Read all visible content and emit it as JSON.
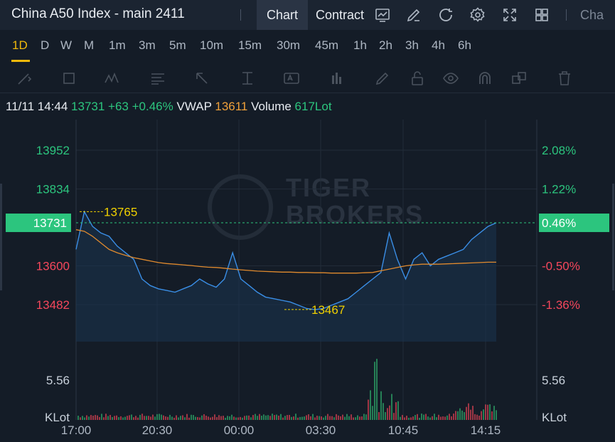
{
  "header": {
    "title": "China A50 Index - main 2411",
    "tab_chart": "Chart",
    "tab_contract": "Contract",
    "truncated": "Cha"
  },
  "intervals": [
    "1D",
    "D",
    "W",
    "M",
    "1m",
    "3m",
    "5m",
    "10m",
    "15m",
    "30m",
    "45m",
    "1h",
    "2h",
    "3h",
    "4h",
    "6h"
  ],
  "active_interval": "1D",
  "quote": {
    "datetime": "11/11 14:44",
    "price": "13731",
    "change": "+63",
    "change_pct": "+0.46%",
    "vwap_label": "VWAP",
    "vwap_value": "13611",
    "volume_label": "Volume",
    "volume_value": "617Lot"
  },
  "watermark": {
    "line1": "TIGER",
    "line2": "BROKERS"
  },
  "colors": {
    "up": "#2cc57e",
    "down": "#f5475c",
    "line": "#3a8ee6",
    "vwap": "#e08a2e",
    "mark": "#f0d000"
  },
  "chart_data": {
    "type": "line",
    "price_levels": [
      {
        "price": 13952,
        "label": "13952",
        "pct": "2.08%",
        "side": "up"
      },
      {
        "price": 13834,
        "label": "13834",
        "pct": "1.22%",
        "side": "up"
      },
      {
        "price": 13731,
        "label": "13731",
        "pct": "0.46%",
        "side": "current"
      },
      {
        "price": 13600,
        "label": "13600",
        "pct": "-0.50%",
        "side": "down"
      },
      {
        "price": 13482,
        "label": "13482",
        "pct": "-1.36%",
        "side": "down"
      }
    ],
    "high_mark": "13765",
    "low_mark": "13467",
    "volume_tick": "5.56",
    "volume_unit": "KLot",
    "x_ticks": [
      "17:00",
      "20:30",
      "00:00",
      "03:30",
      "10:45",
      "14:15"
    ],
    "series": [
      {
        "values": [
          13650,
          13765,
          13720,
          13700,
          13690,
          13660,
          13640,
          13620,
          13560,
          13540,
          13530,
          13525,
          13520,
          13530,
          13540,
          13560,
          13545,
          13535,
          13560,
          13640,
          13560,
          13540,
          13520,
          13505,
          13500,
          13495,
          13490,
          13480,
          13470,
          13467,
          13470,
          13480,
          13490,
          13500,
          13520,
          13540,
          13560,
          13580,
          13700,
          13620,
          13560,
          13620,
          13640,
          13600,
          13620,
          13630,
          13640,
          13650,
          13680,
          13700,
          13720,
          13731
        ]
      },
      {
        "values": [
          13710,
          13705,
          13690,
          13670,
          13650,
          13640,
          13632,
          13625,
          13620,
          13615,
          13610,
          13607,
          13605,
          13603,
          13601,
          13598,
          13596,
          13595,
          13593,
          13590,
          13588,
          13586,
          13584,
          13583,
          13582,
          13581,
          13581,
          13580,
          13580,
          13579,
          13579,
          13578,
          13578,
          13578,
          13578,
          13579,
          13580,
          13585,
          13590,
          13595,
          13600,
          13603,
          13605,
          13605,
          13605,
          13606,
          13607,
          13608,
          13609,
          13610,
          13611,
          13611
        ]
      }
    ]
  }
}
